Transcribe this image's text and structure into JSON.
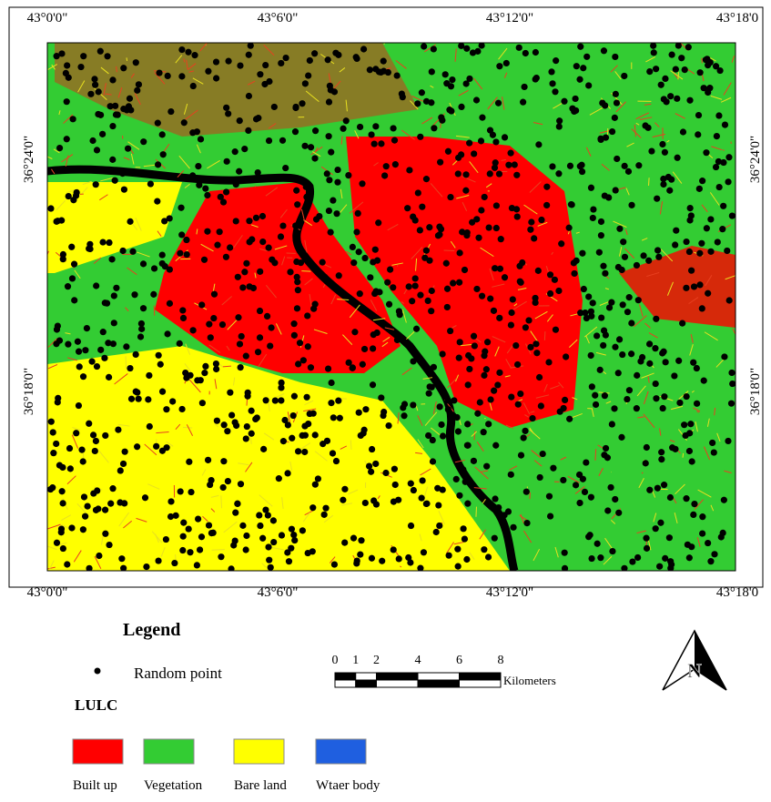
{
  "map": {
    "top_labels": [
      "43°0'0\"",
      "43°6'0\"",
      "43°12'0\"",
      "43°18'0"
    ],
    "bottom_labels": [
      "43°0'0\"",
      "43°6'0\"",
      "43°12'0\"",
      "43°18'0"
    ],
    "left_labels": [
      "36°24'0\"",
      "36°18'0\""
    ],
    "right_labels": [
      "36°24'0\"",
      "36°18'0\""
    ]
  },
  "legend": {
    "title": "Legend",
    "point_label": "Random point",
    "lulc_title": "LULC",
    "classes": [
      {
        "label": "Built up",
        "color": "#ff0000"
      },
      {
        "label": "Vegetation",
        "color": "#33cc33"
      },
      {
        "label": "Bare land",
        "color": "#ffff00"
      },
      {
        "label": "Wtaer body",
        "color": "#1f5fe0"
      }
    ]
  },
  "scale_bar": {
    "ticks": [
      0,
      1,
      2,
      4,
      6,
      8
    ],
    "unit": "Kilometers"
  },
  "north_arrow": "N"
}
